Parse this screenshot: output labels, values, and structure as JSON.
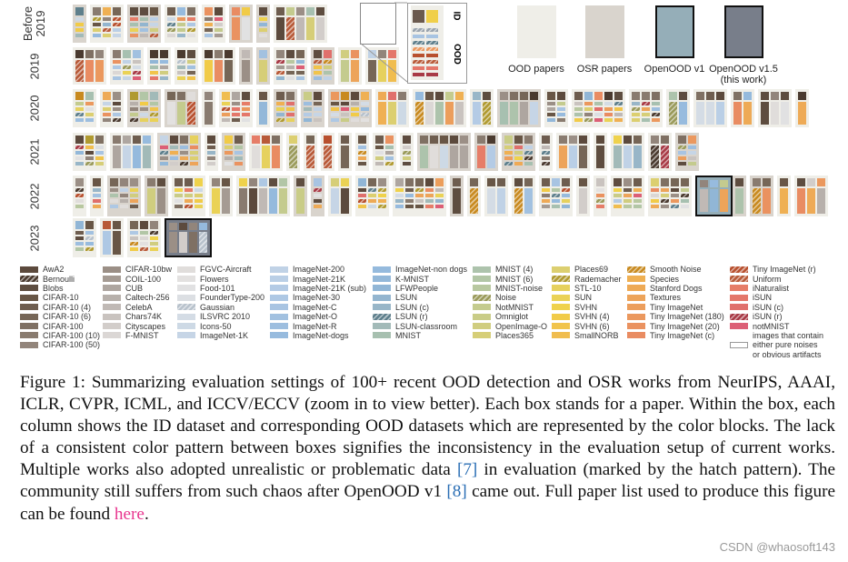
{
  "rows": [
    {
      "label": "Before\n2019",
      "papers": 16
    },
    {
      "label": "2019",
      "papers": 11
    },
    {
      "label": "2020",
      "papers": 22
    },
    {
      "label": "2021",
      "papers": 22
    },
    {
      "label": "2022",
      "papers": 28
    },
    {
      "label": "2023",
      "papers": 4
    }
  ],
  "inset": {
    "id_label": "ID",
    "ood_label": "OOD"
  },
  "key": [
    {
      "label": "OOD papers",
      "color": "#efeee8"
    },
    {
      "label": "OSR papers",
      "color": "#d9d4cd"
    },
    {
      "label": "OpenOOD v1",
      "color": "#95aeb8"
    },
    {
      "label": "OpenOOD v1.5",
      "sub": "(this work)",
      "color": "#787e8a"
    }
  ],
  "legend": [
    [
      {
        "l": "AwA2",
        "c": "#5c4a3d"
      },
      {
        "l": "Bernoulli",
        "c": "#4a3a2f",
        "h": 1
      },
      {
        "l": "Blobs",
        "c": "#5e4d40"
      },
      {
        "l": "CIFAR-10",
        "c": "#685646"
      },
      {
        "l": "CIFAR-10 (4)",
        "c": "#6e5d4f"
      },
      {
        "l": "CIFAR-10 (6)",
        "c": "#766657"
      },
      {
        "l": "CIFAR-100",
        "c": "#7f7063"
      },
      {
        "l": "CIFAR-100 (10)",
        "c": "#897b6f"
      },
      {
        "l": "CIFAR-100 (50)",
        "c": "#92857b"
      }
    ],
    [
      {
        "l": "CIFAR-10bw",
        "c": "#9b8f86"
      },
      {
        "l": "COIL-100",
        "c": "#a59b93"
      },
      {
        "l": "CUB",
        "c": "#aea6a0"
      },
      {
        "l": "Caltech-256",
        "c": "#b7b0ab"
      },
      {
        "l": "CelebA",
        "c": "#c0b9b5"
      },
      {
        "l": "Chars74K",
        "c": "#c9c3bf"
      },
      {
        "l": "Cityscapes",
        "c": "#d2cdca"
      },
      {
        "l": "F-MNIST",
        "c": "#dbd7d5"
      }
    ],
    [
      {
        "l": "FGVC-Aircraft",
        "c": "#e0dddb"
      },
      {
        "l": "Flowers",
        "c": "#e3e1e0"
      },
      {
        "l": "Food-101",
        "c": "#e1e1e2"
      },
      {
        "l": "FounderType-200",
        "c": "#dcdfe3"
      },
      {
        "l": "Gaussian",
        "c": "#b8c2cc",
        "h": 1
      },
      {
        "l": "ILSVRC 2010",
        "c": "#d4dce5"
      },
      {
        "l": "Icons-50",
        "c": "#cdd9e5"
      },
      {
        "l": "ImageNet-1K",
        "c": "#c6d5e6"
      }
    ],
    [
      {
        "l": "ImageNet-200",
        "c": "#c0d2e6"
      },
      {
        "l": "ImageNet-21K",
        "c": "#bacfe6"
      },
      {
        "l": "ImageNet-21K (sub)",
        "c": "#b4cbe5"
      },
      {
        "l": "ImageNet-30",
        "c": "#aec8e4"
      },
      {
        "l": "ImageNet-C",
        "c": "#a8c4e2"
      },
      {
        "l": "ImageNet-O",
        "c": "#a2c1e0"
      },
      {
        "l": "ImageNet-R",
        "c": "#9dbedf"
      },
      {
        "l": "ImageNet-dogs",
        "c": "#97bbde"
      }
    ],
    [
      {
        "l": "ImageNet-non dogs",
        "c": "#95badd"
      },
      {
        "l": "K-MNIST",
        "c": "#93b8d9"
      },
      {
        "l": "LFWPeople",
        "c": "#91b6d6"
      },
      {
        "l": "LSUN",
        "c": "#93b5cf"
      },
      {
        "l": "LSUN (c)",
        "c": "#98b6c8"
      },
      {
        "l": "LSUN (r)",
        "c": "#5e7f8c",
        "h": 1
      },
      {
        "l": "LSUN-classroom",
        "c": "#a2bab8"
      },
      {
        "l": "MNIST",
        "c": "#a7c0b0"
      }
    ],
    [
      {
        "l": "MNIST (4)",
        "c": "#adc3ac"
      },
      {
        "l": "MNIST (6)",
        "c": "#b2c6a6"
      },
      {
        "l": "MNIST-noise",
        "c": "#b8c8a0"
      },
      {
        "l": "Noise",
        "c": "#9a9a5a",
        "h": 1
      },
      {
        "l": "NotMNIST",
        "c": "#c4cb8e"
      },
      {
        "l": "Omniglot",
        "c": "#c9cc87"
      },
      {
        "l": "OpenImage-O",
        "c": "#d0cd7f"
      },
      {
        "l": "Places365",
        "c": "#d6ce78"
      }
    ],
    [
      {
        "l": "Places69",
        "c": "#dccf70"
      },
      {
        "l": "Rademacher",
        "c": "#b09a30",
        "h": 1
      },
      {
        "l": "STL-10",
        "c": "#e6d15e"
      },
      {
        "l": "SUN",
        "c": "#ead256"
      },
      {
        "l": "SVHN",
        "c": "#efd24c"
      },
      {
        "l": "SVHN (4)",
        "c": "#f1cb48"
      },
      {
        "l": "SVHN (6)",
        "c": "#f1c44b"
      },
      {
        "l": "SmallNORB",
        "c": "#f0bd4f"
      }
    ],
    [
      {
        "l": "Smooth Noise",
        "c": "#c88a20",
        "h": 1
      },
      {
        "l": "Species",
        "c": "#efb053"
      },
      {
        "l": "Stanford Dogs",
        "c": "#eeaa56"
      },
      {
        "l": "Textures",
        "c": "#eda45a"
      },
      {
        "l": "Tiny ImageNet",
        "c": "#ec9e5c"
      },
      {
        "l": "Tiny ImageNet (180)",
        "c": "#eb985e"
      },
      {
        "l": "Tiny ImageNet (20)",
        "c": "#ea9260"
      },
      {
        "l": "Tiny ImageNet (c)",
        "c": "#e98c62"
      }
    ],
    [
      {
        "l": "Tiny ImageNet (r)",
        "c": "#b8502e",
        "h": 1
      },
      {
        "l": "Uniform",
        "c": "#b85a38",
        "h": 1
      },
      {
        "l": "iNaturalist",
        "c": "#e67d68"
      },
      {
        "l": "iSUN",
        "c": "#e4776a"
      },
      {
        "l": "iSUN (c)",
        "c": "#e0706c"
      },
      {
        "l": "iSUN (r)",
        "c": "#a83a46",
        "h": 1
      },
      {
        "l": "notMNIST",
        "c": "#dc5f76"
      },
      {
        "l": "images that contain",
        "c": ""
      },
      {
        "l": "either pure noises",
        "c": "#ffffff",
        "h": 2
      },
      {
        "l": "or obvious artifacts",
        "c": ""
      }
    ]
  ],
  "caption": {
    "text1": "Figure 1:  Summarizing evaluation settings of 100+ recent OOD detection and OSR works from NeurIPS, AAAI, ICLR, CVPR, ICML, and ICCV/ECCV (zoom in to view better). Each box stands for a paper.  Within the box, each column shows the ID dataset and corresponding OOD datasets which are represented by the color blocks.  The lack of a consistent color pattern between boxes signifies the inconsistency in the evaluation setup of current works. Multiple works also adopted unrealistic or problematic data ",
    "ref1": "[7]",
    "text2": " in evaluation (marked by the hatch pattern). The community still suffers from such chaos after OpenOOD v1 ",
    "ref2": "[8]",
    "text3": " came out. Full paper list used to produce this figure can be found ",
    "link": "here",
    "text4": "."
  },
  "watermark": "CSDN @whaosoft143"
}
